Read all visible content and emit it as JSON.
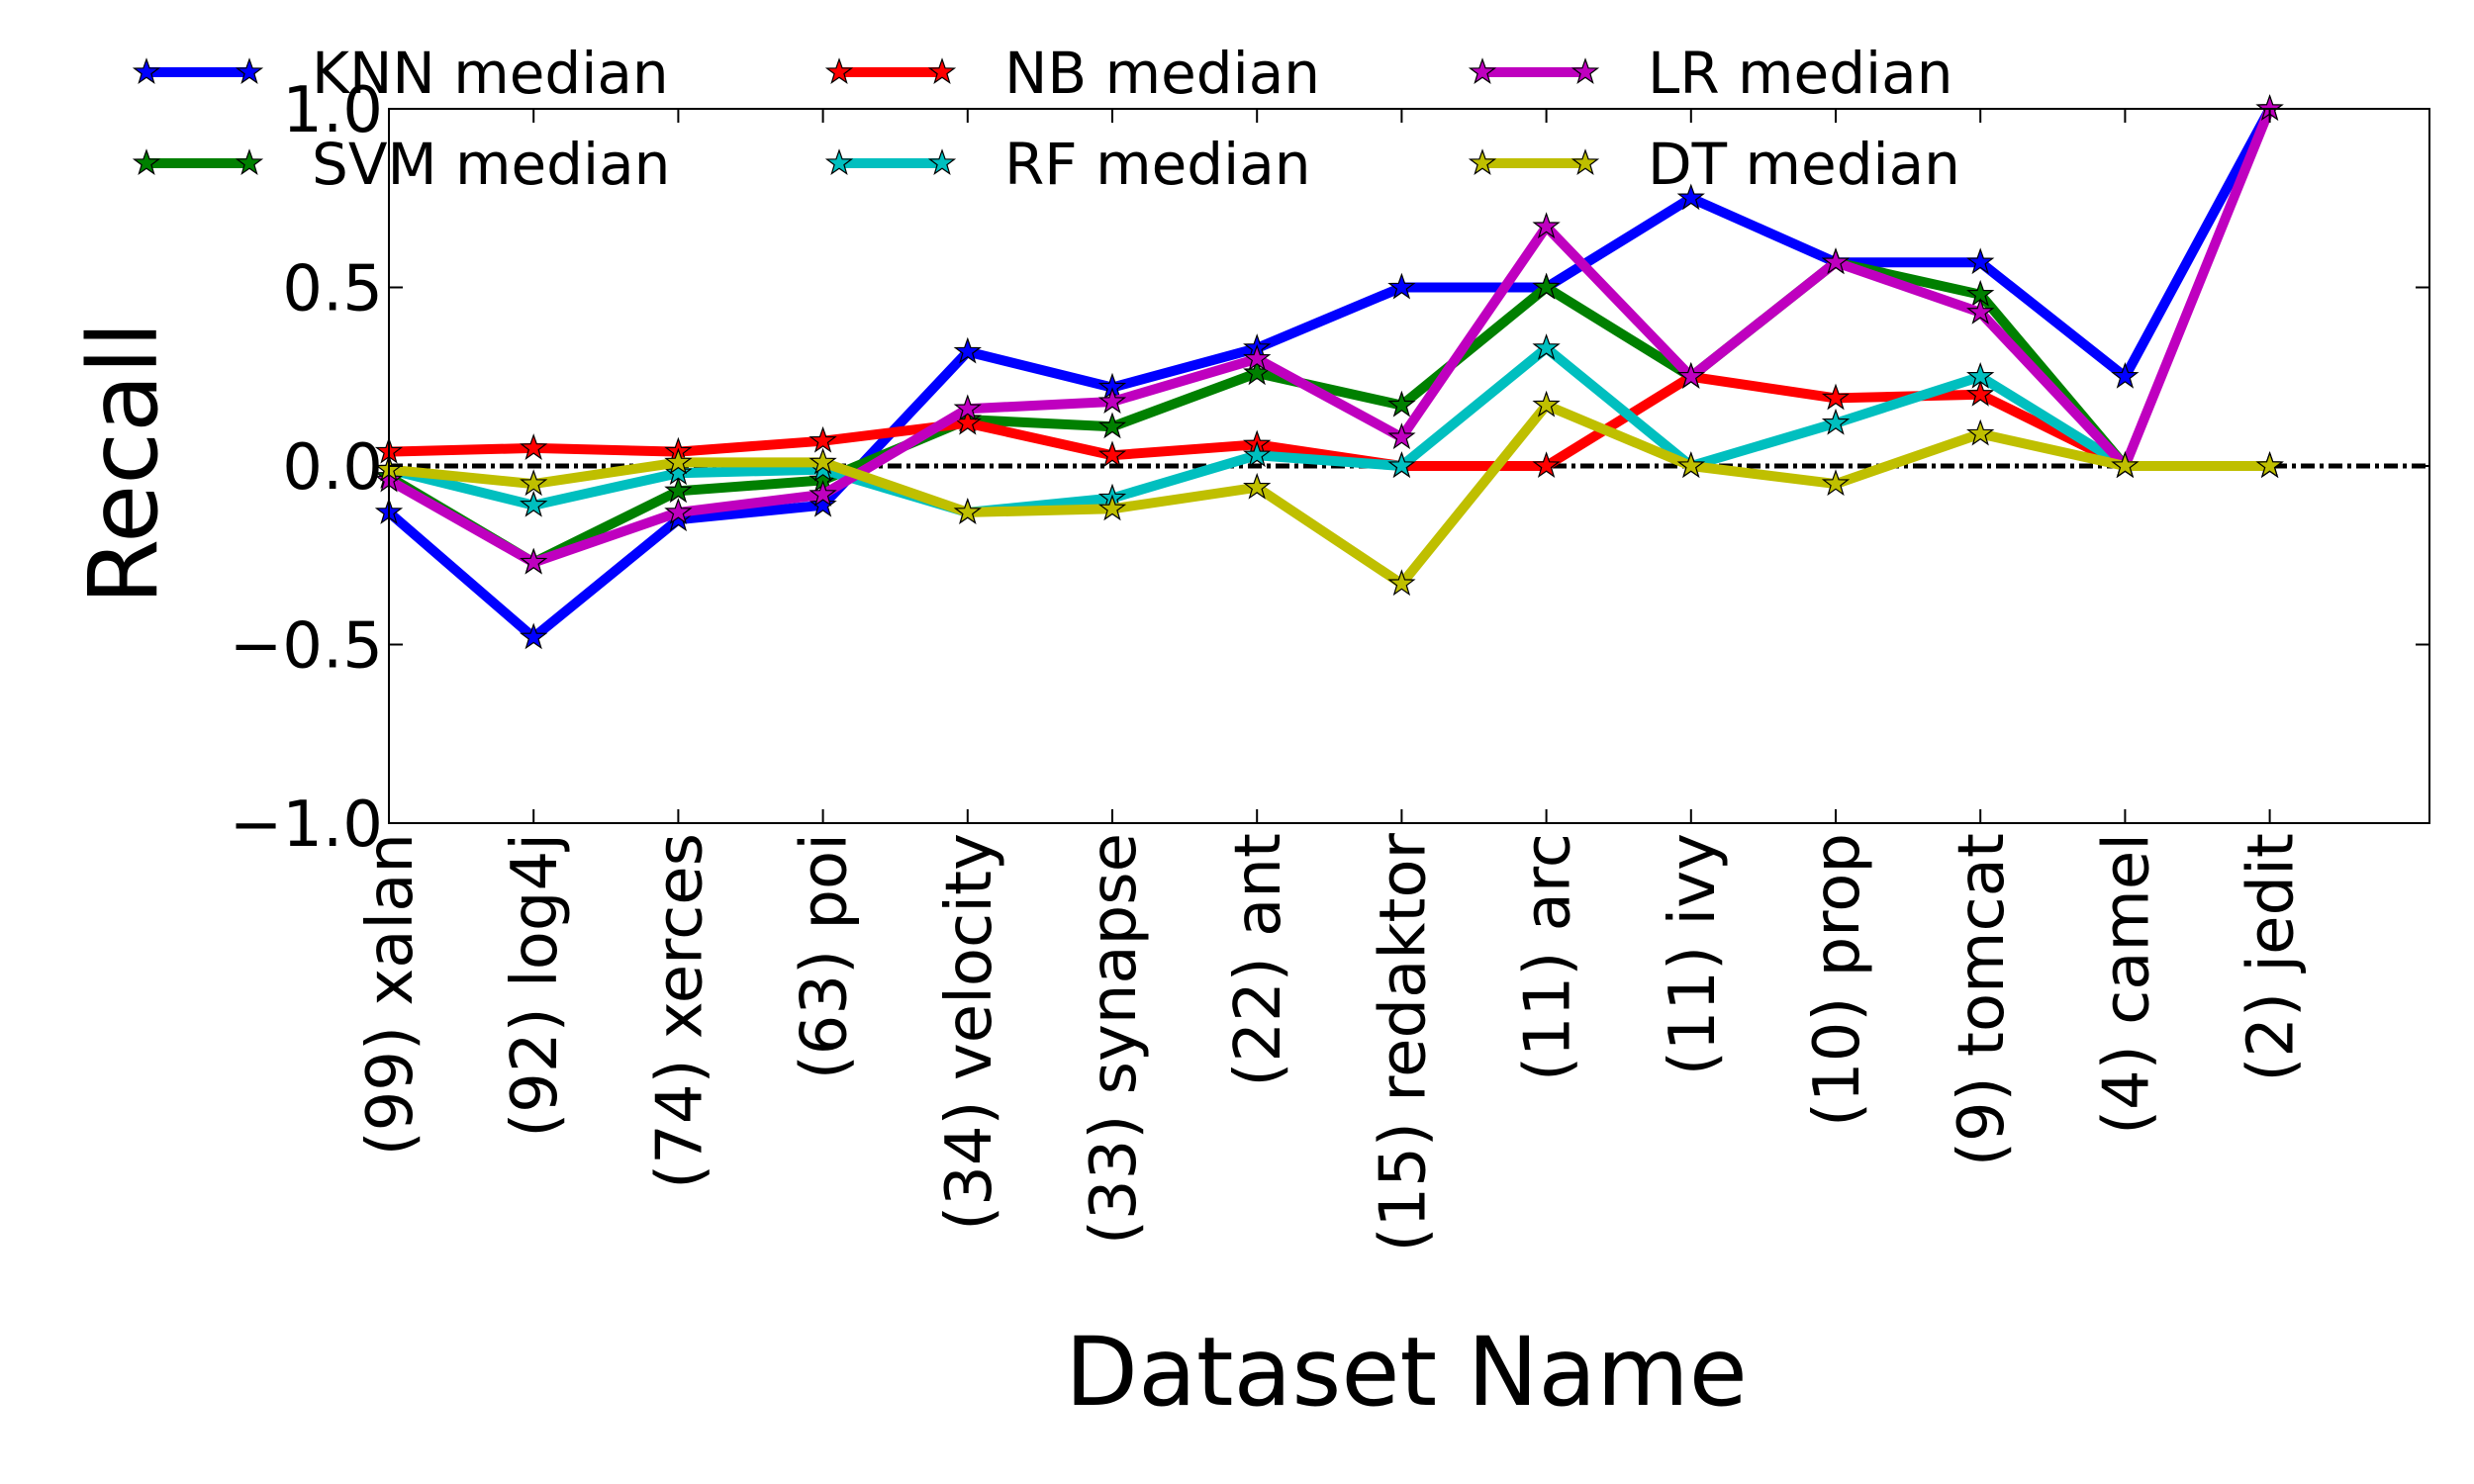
{
  "chart_data": {
    "type": "line",
    "title": "",
    "xlabel": "Dataset Name",
    "ylabel": "Recall",
    "ylim": [
      -1.0,
      1.0
    ],
    "yticks": [
      "−1.0",
      "−0.5",
      "0.0",
      "0.5",
      "1.0"
    ],
    "ytick_values": [
      -1.0,
      -0.5,
      0.0,
      0.5,
      1.0
    ],
    "categories": [
      "(99) xalan",
      "(92) log4j",
      "(74) xerces",
      "(63) poi",
      "(34) velocity",
      "(33) synapse",
      "(22) ant",
      "(15) redaktor",
      "(11) arc",
      "(11) ivy",
      "(10) prop",
      "(9) tomcat",
      "(4) camel",
      "(2) jedit"
    ],
    "grid": false,
    "zero_reference_line": true,
    "legend_position": "top",
    "series": [
      {
        "name": "KNN median",
        "color": "#0000ff",
        "values": [
          -0.13,
          -0.48,
          -0.15,
          -0.11,
          0.32,
          0.22,
          0.33,
          0.5,
          0.5,
          0.75,
          0.57,
          0.57,
          0.25,
          1.0
        ]
      },
      {
        "name": "SVM median",
        "color": "#008000",
        "values": [
          -0.03,
          -0.27,
          -0.07,
          -0.04,
          0.13,
          0.11,
          0.26,
          0.17,
          0.5,
          0.25,
          0.57,
          0.48,
          0.0,
          0.0
        ]
      },
      {
        "name": "NB median",
        "color": "#ff0000",
        "values": [
          0.04,
          0.05,
          0.04,
          0.07,
          0.12,
          0.03,
          0.06,
          0.0,
          0.0,
          0.25,
          0.19,
          0.2,
          0.0,
          0.0
        ]
      },
      {
        "name": "RF median",
        "color": "#00bfbf",
        "values": [
          -0.01,
          -0.11,
          -0.02,
          -0.01,
          -0.13,
          -0.09,
          0.03,
          0.0,
          0.33,
          0.0,
          0.12,
          0.25,
          0.0,
          0.0
        ]
      },
      {
        "name": "LR median",
        "color": "#bf00bf",
        "values": [
          -0.04,
          -0.27,
          -0.13,
          -0.08,
          0.16,
          0.18,
          0.3,
          0.08,
          0.67,
          0.25,
          0.57,
          0.43,
          0.0,
          1.0
        ]
      },
      {
        "name": "DT median",
        "color": "#bfbf00",
        "values": [
          -0.01,
          -0.05,
          0.01,
          0.01,
          -0.13,
          -0.12,
          -0.06,
          -0.33,
          0.17,
          0.0,
          -0.05,
          0.09,
          0.0,
          0.0
        ]
      }
    ]
  }
}
